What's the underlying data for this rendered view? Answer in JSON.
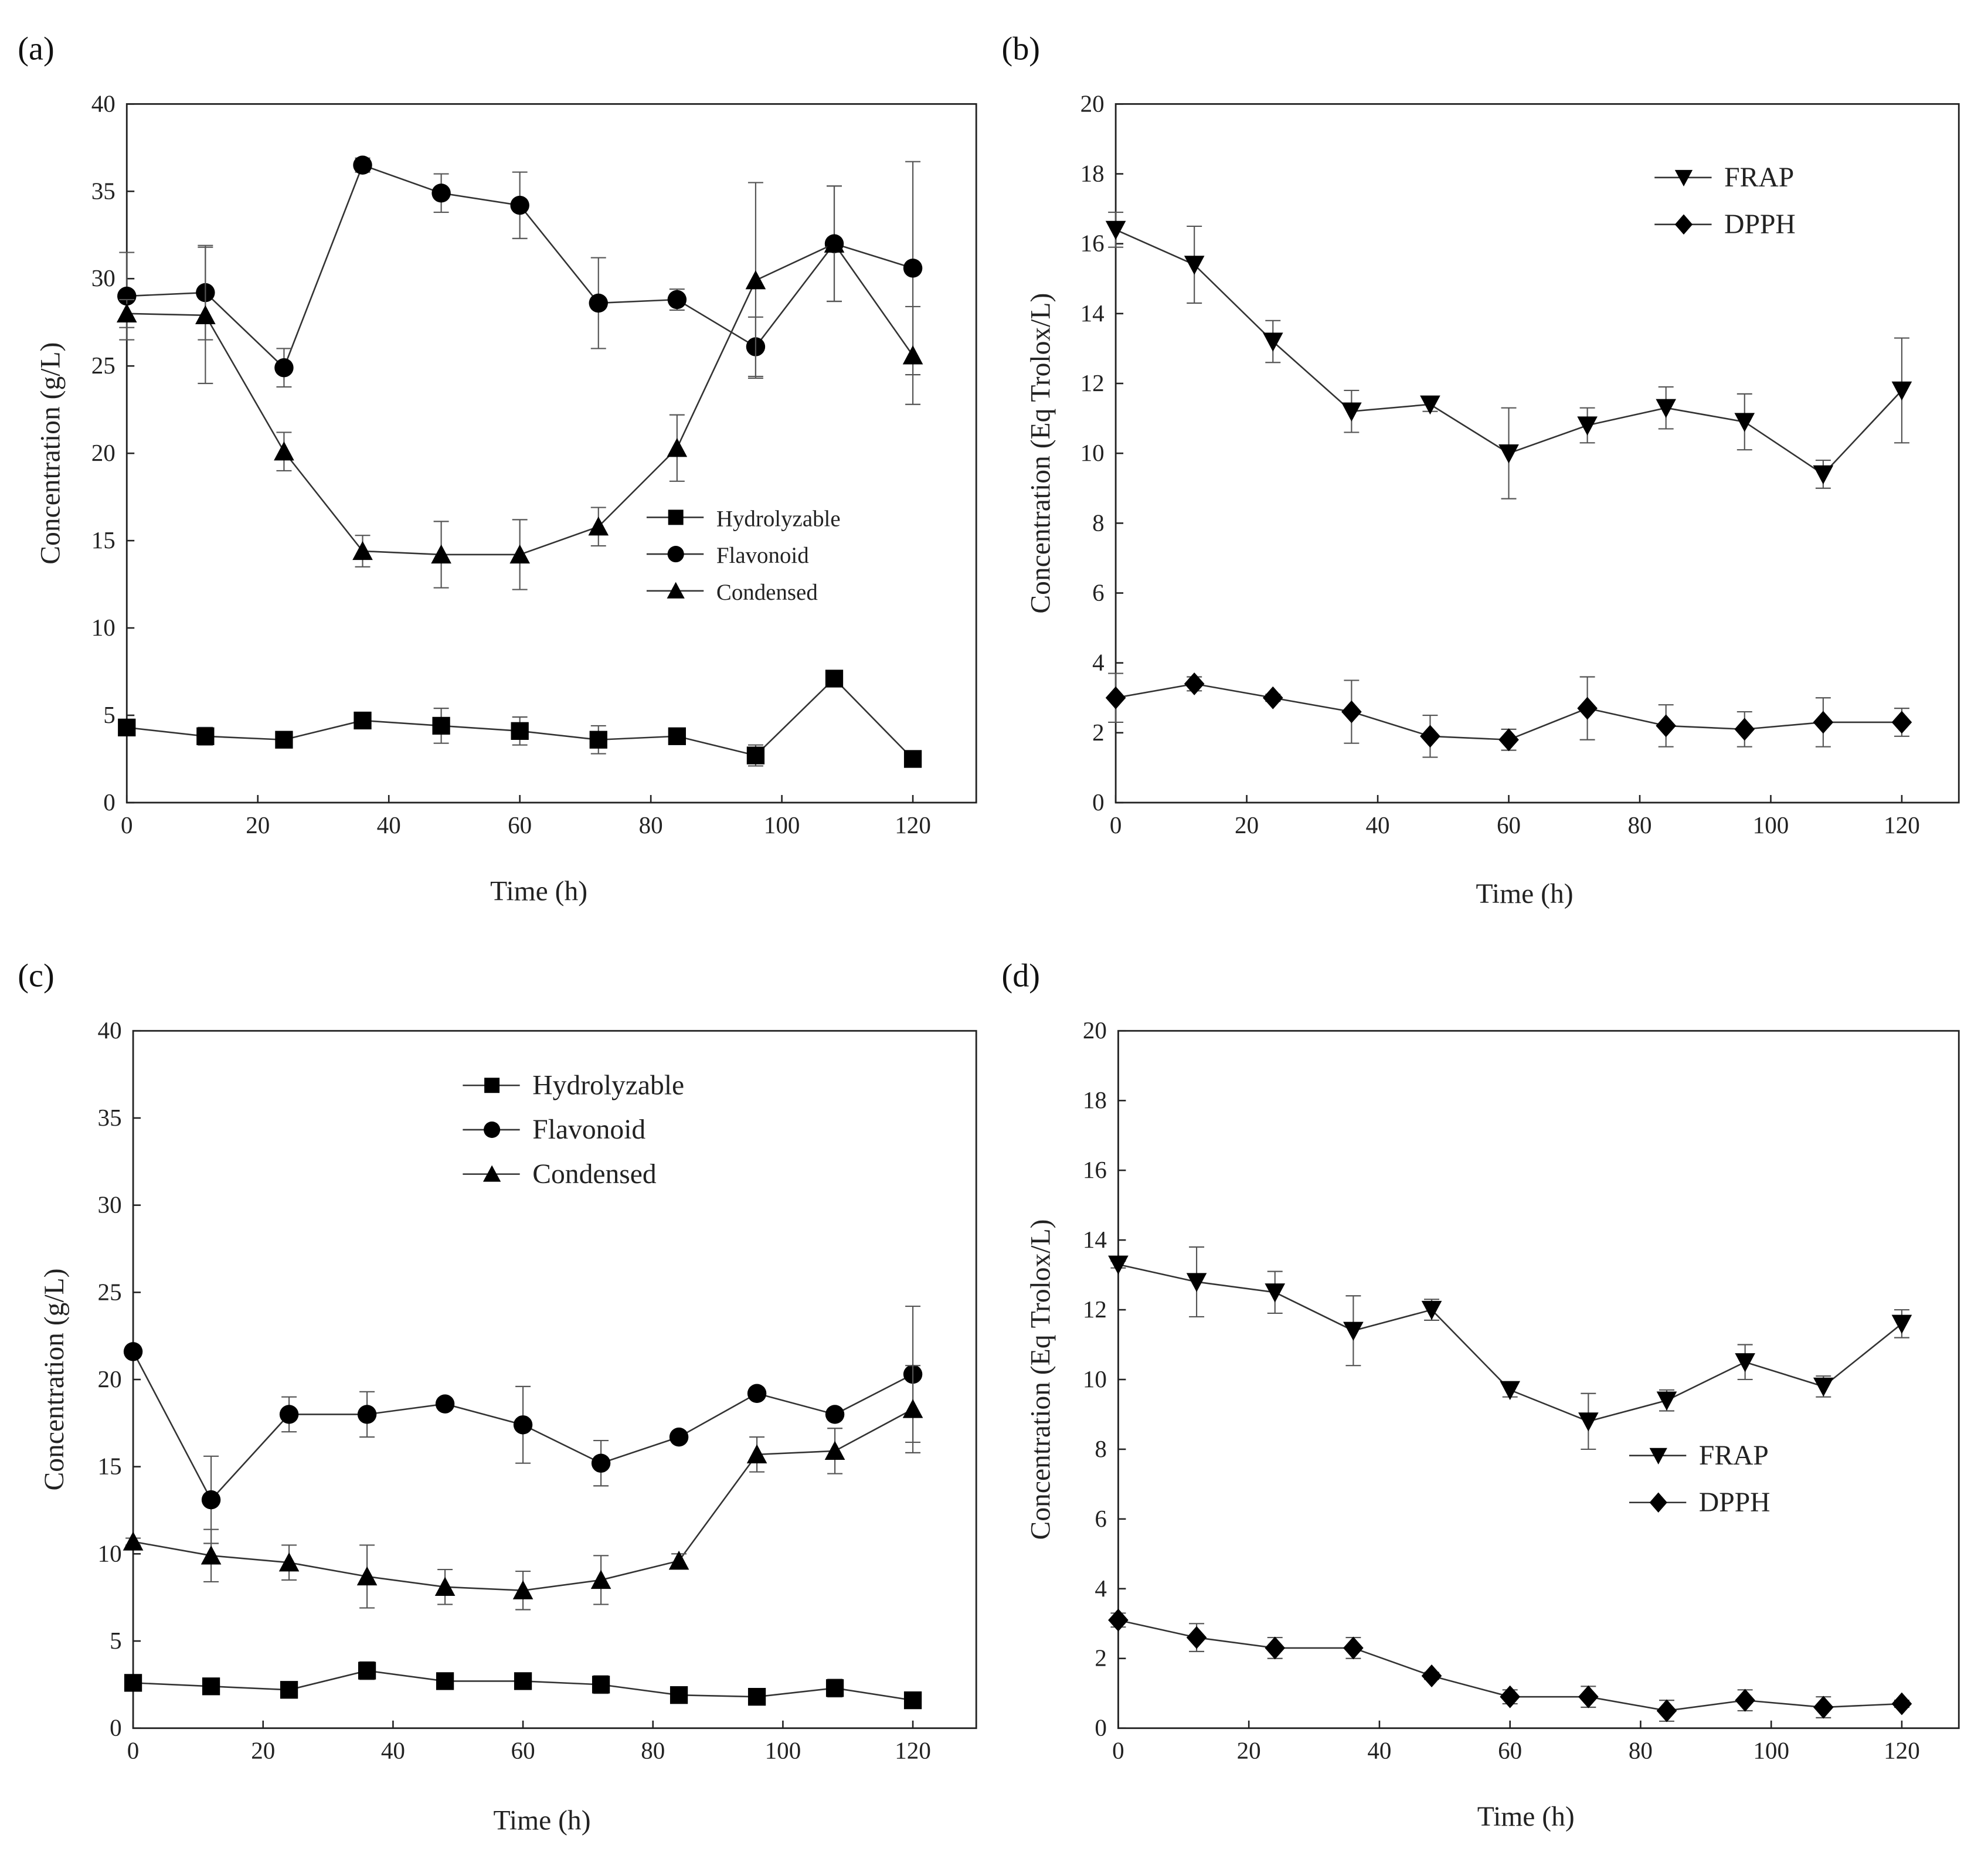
{
  "chart_data": [
    {
      "panel": "(a)",
      "type": "line",
      "xlabel": "Time (h)",
      "ylabel": "Concentration (g/L)",
      "xlim": [
        0,
        130
      ],
      "ylim": [
        0,
        40
      ],
      "xticks": [
        0,
        20,
        40,
        60,
        80,
        100,
        120
      ],
      "yticks": [
        0,
        5,
        10,
        15,
        20,
        25,
        30,
        35,
        40
      ],
      "legend_position": "center-right",
      "x": [
        0,
        12,
        24,
        36,
        48,
        60,
        72,
        84,
        96,
        108,
        120
      ],
      "series": [
        {
          "name": "Hydrolyzable",
          "marker": "square",
          "values": [
            4.3,
            3.8,
            3.6,
            4.7,
            4.4,
            4.1,
            3.6,
            3.8,
            2.7,
            7.1,
            2.5
          ],
          "errors": [
            0.3,
            0.5,
            0.2,
            0.3,
            1.0,
            0.8,
            0.8,
            0.3,
            0.6,
            0.2,
            0.4
          ]
        },
        {
          "name": "Flavonoid",
          "marker": "circle",
          "values": [
            29.0,
            29.2,
            24.9,
            36.5,
            34.9,
            34.2,
            28.6,
            28.8,
            26.1,
            32.0,
            30.6
          ],
          "errors": [
            2.5,
            2.7,
            1.1,
            0.4,
            1.1,
            1.9,
            2.6,
            0.6,
            1.7,
            3.3,
            6.1
          ]
        },
        {
          "name": "Condensed",
          "marker": "triangle-up",
          "values": [
            28.0,
            27.9,
            20.1,
            14.4,
            14.2,
            14.2,
            15.8,
            20.3,
            29.9,
            32.0,
            25.6
          ],
          "errors": [
            0.8,
            3.9,
            1.1,
            0.9,
            1.9,
            2.0,
            1.1,
            1.9,
            5.6,
            3.3,
            2.8
          ]
        }
      ]
    },
    {
      "panel": "(b)",
      "type": "line",
      "xlabel": "Time (h)",
      "ylabel": "Concentration (Eq Trolox/L)",
      "xlim": [
        0,
        130
      ],
      "ylim": [
        0,
        20
      ],
      "xticks": [
        0,
        20,
        40,
        60,
        80,
        100,
        120
      ],
      "yticks": [
        0,
        2,
        4,
        6,
        8,
        10,
        12,
        14,
        16,
        18,
        20
      ],
      "legend_position": "top-right",
      "x": [
        0,
        12,
        24,
        36,
        48,
        60,
        72,
        84,
        96,
        108,
        120
      ],
      "series": [
        {
          "name": "FRAP",
          "marker": "triangle-down",
          "values": [
            16.4,
            15.4,
            13.2,
            11.2,
            11.4,
            10.0,
            10.8,
            11.3,
            10.9,
            9.4,
            11.8
          ],
          "errors": [
            0.5,
            1.1,
            0.6,
            0.6,
            0.2,
            1.3,
            0.5,
            0.6,
            0.8,
            0.4,
            1.5
          ]
        },
        {
          "name": "DPPH",
          "marker": "diamond",
          "values": [
            3.0,
            3.4,
            3.0,
            2.6,
            1.9,
            1.8,
            2.7,
            2.2,
            2.1,
            2.3,
            2.3
          ],
          "errors": [
            0.7,
            0.2,
            0.1,
            0.9,
            0.6,
            0.3,
            0.9,
            0.6,
            0.5,
            0.7,
            0.4
          ]
        }
      ]
    },
    {
      "panel": "(c)",
      "type": "line",
      "xlabel": "Time (h)",
      "ylabel": "Concentration (g/L)",
      "xlim": [
        0,
        130
      ],
      "ylim": [
        0,
        40
      ],
      "xticks": [
        0,
        20,
        40,
        60,
        80,
        100,
        120
      ],
      "yticks": [
        0,
        5,
        10,
        15,
        20,
        25,
        30,
        35,
        40
      ],
      "legend_position": "top-center",
      "x": [
        0,
        12,
        24,
        36,
        48,
        60,
        72,
        84,
        96,
        108,
        120
      ],
      "series": [
        {
          "name": "Hydrolyzable",
          "marker": "square",
          "values": [
            2.6,
            2.4,
            2.2,
            3.3,
            2.7,
            2.7,
            2.5,
            1.9,
            1.8,
            2.3,
            1.6
          ],
          "errors": [
            0.2,
            0.2,
            0.2,
            0.5,
            0.2,
            0.4,
            0.5,
            0.1,
            0.1,
            0.5,
            0.2
          ]
        },
        {
          "name": "Flavonoid",
          "marker": "circle",
          "values": [
            21.6,
            13.1,
            18.0,
            18.0,
            18.6,
            17.4,
            15.2,
            16.7,
            19.2,
            18.0,
            20.3
          ],
          "errors": [
            0.3,
            2.5,
            1.0,
            1.3,
            0.2,
            2.2,
            1.3,
            0.3,
            0.3,
            0.3,
            3.9
          ]
        },
        {
          "name": "Condensed",
          "marker": "triangle-up",
          "values": [
            10.7,
            9.9,
            9.5,
            8.7,
            8.1,
            7.9,
            8.5,
            9.6,
            15.7,
            15.9,
            18.3
          ],
          "errors": [
            0.2,
            1.5,
            1.0,
            1.8,
            1.0,
            1.1,
            1.4,
            0.4,
            1.0,
            1.3,
            2.5
          ]
        }
      ]
    },
    {
      "panel": "(d)",
      "type": "line",
      "xlabel": "Time (h)",
      "ylabel": "Concentration (Eq Trolox/L)",
      "xlim": [
        0,
        130
      ],
      "ylim": [
        0,
        20
      ],
      "xticks": [
        0,
        20,
        40,
        60,
        80,
        100,
        120
      ],
      "yticks": [
        0,
        2,
        4,
        6,
        8,
        10,
        12,
        14,
        16,
        18,
        20
      ],
      "legend_position": "center-right",
      "x": [
        0,
        12,
        24,
        36,
        48,
        60,
        72,
        84,
        96,
        108,
        120
      ],
      "series": [
        {
          "name": "FRAP",
          "marker": "triangle-down",
          "values": [
            13.3,
            12.8,
            12.5,
            11.4,
            12.0,
            9.7,
            8.8,
            9.4,
            10.5,
            9.8,
            11.6
          ],
          "errors": [
            0.1,
            1.0,
            0.6,
            1.0,
            0.3,
            0.2,
            0.8,
            0.3,
            0.5,
            0.3,
            0.4
          ]
        },
        {
          "name": "DPPH",
          "marker": "diamond",
          "values": [
            3.1,
            2.6,
            2.3,
            2.3,
            1.5,
            0.9,
            0.9,
            0.5,
            0.8,
            0.6,
            0.7
          ],
          "errors": [
            0.2,
            0.4,
            0.3,
            0.3,
            0.1,
            0.2,
            0.3,
            0.3,
            0.3,
            0.3,
            0.1
          ]
        }
      ]
    }
  ]
}
